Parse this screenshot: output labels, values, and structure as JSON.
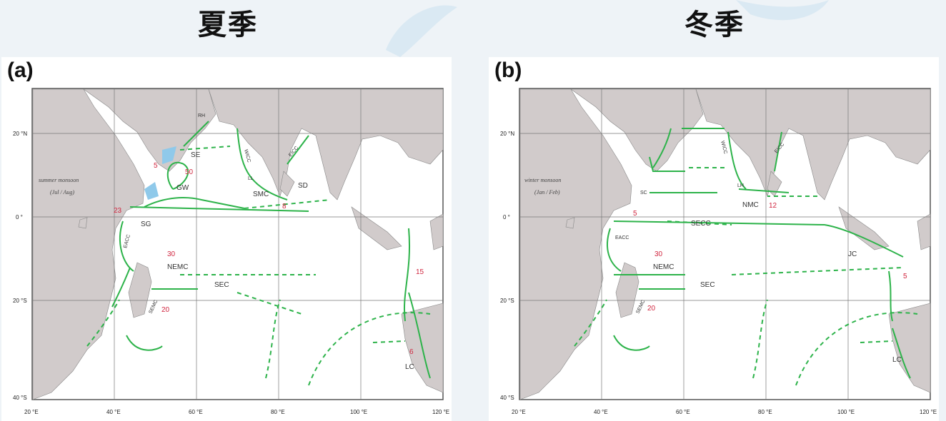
{
  "titles": {
    "summer": "夏季",
    "winter": "冬季"
  },
  "colors": {
    "land": "#d1cbcb",
    "current": "#2db34a",
    "number": "#d0263f",
    "upwelling": "#8fc9ea"
  },
  "panels": [
    {
      "id": "a",
      "label": "(a)",
      "season_note": "summer monsoon",
      "season_period": "(Jul / Aug)",
      "lat_labels": [
        "20 °N",
        "0 °",
        "20 °S",
        "40 °S"
      ],
      "lon_labels": [
        "20 °E",
        "40 °E",
        "60 °E",
        "80 °E",
        "100 °E",
        "120 °E"
      ],
      "currents": [
        "RH",
        "SE",
        "GW",
        "WICC",
        "LL",
        "SMC",
        "EICC",
        "SD",
        "SG",
        "EACC",
        "NEMC",
        "SEC",
        "SEMC",
        "LC"
      ],
      "numbers": [
        "5",
        "50",
        "23",
        "8",
        "30",
        "15",
        "20",
        "6"
      ]
    },
    {
      "id": "b",
      "label": "(b)",
      "season_note": "winter monsoon",
      "season_period": "(Jan / Feb)",
      "lat_labels": [
        "20 °N",
        "0 °",
        "20 °S",
        "40 °S"
      ],
      "lon_labels": [
        "20 °E",
        "40 °E",
        "60 °E",
        "80 °E",
        "100 °E",
        "120 °E"
      ],
      "currents": [
        "WICC",
        "EICC",
        "LH",
        "NMC",
        "SC",
        "SECC",
        "EACC",
        "NEMC",
        "JC",
        "SEC",
        "SEMC",
        "LC"
      ],
      "numbers": [
        "12",
        "5",
        "30",
        "5",
        "20"
      ]
    }
  ]
}
